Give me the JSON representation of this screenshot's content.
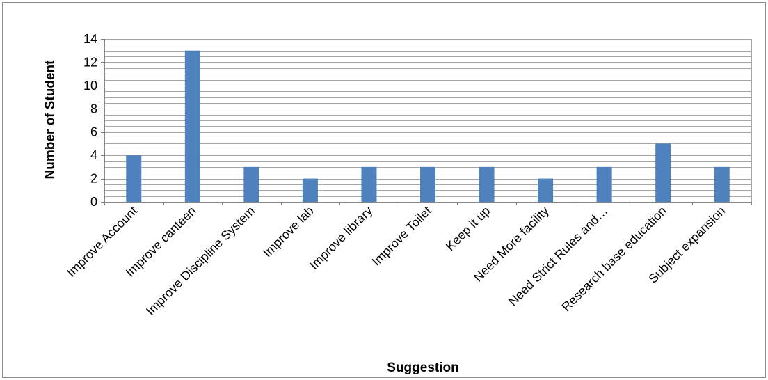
{
  "chart_data": {
    "type": "bar",
    "title": "",
    "xlabel": "Suggestion",
    "ylabel": "Number of Student",
    "ylim": [
      0,
      14
    ],
    "y_ticks": [
      "0",
      "2",
      "4",
      "6",
      "8",
      "10",
      "12",
      "14"
    ],
    "grid": true,
    "legend": "none",
    "categories": [
      "Improve Account",
      "Improve canteen",
      "Improve Discipline System",
      "Improve lab",
      "Improve library",
      "Improve Toilet",
      "Keep it up",
      "Need More facility",
      "Need Strict Rules and…",
      "Research base education",
      "Subject expansion"
    ],
    "values": [
      4,
      13,
      3,
      2,
      3,
      3,
      3,
      2,
      3,
      5,
      3
    ],
    "colors": {
      "bar": "#4f81bd",
      "grid": "#a6a6a6",
      "axis": "#868686"
    }
  }
}
